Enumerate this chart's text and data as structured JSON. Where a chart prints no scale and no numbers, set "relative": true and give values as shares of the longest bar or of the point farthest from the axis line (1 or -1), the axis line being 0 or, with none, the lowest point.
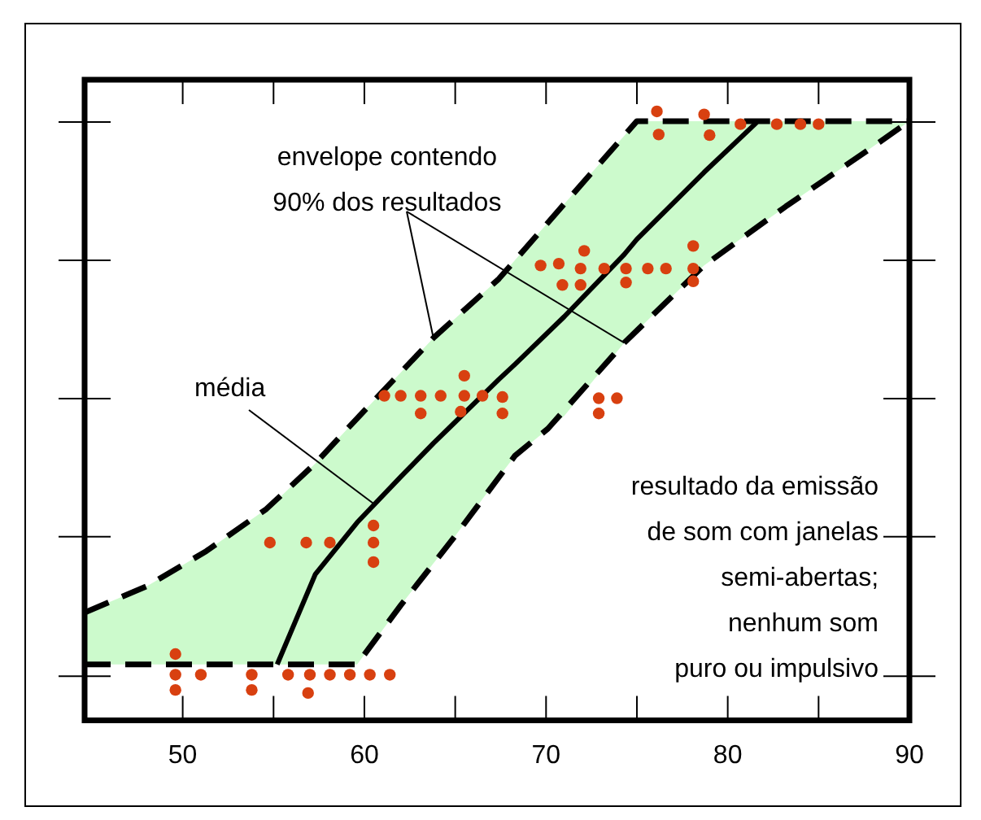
{
  "chart_data": {
    "type": "scatter",
    "relative": true,
    "xlim": [
      44.6,
      90
    ],
    "xticks": [
      50,
      {
        "value": 55,
        "label": null
      },
      60,
      {
        "value": 65,
        "label": null
      },
      70,
      {
        "value": 75,
        "label": null
      },
      80,
      {
        "value": 85,
        "label": null
      },
      90
    ],
    "grid": false,
    "legend": false,
    "tick_labels": "x",
    "annotations": [
      {
        "text": "envelope contendo\n90% dos resultados",
        "x": 63.8,
        "y": 0.628
      },
      {
        "text": "média",
        "x": 60.5,
        "y": 0.356
      },
      "resultado da emissão\nde som com janelas\nsemi-abertas;\nnenhum som\npuro ou impulsivo"
    ],
    "series": [
      {
        "type": "scatter",
        "color": "#d84010",
        "marker": "circle",
        "x": [
          76.1,
          76.2,
          78.7,
          79.0,
          80.7,
          82.7,
          84.0,
          85.0,
          69.7,
          70.7,
          72.1,
          71.9,
          70.9,
          71.9,
          73.2,
          74.4,
          74.4,
          75.6,
          76.6,
          78.1,
          78.1,
          78.1,
          67.6,
          67.6,
          72.9,
          73.9,
          72.9,
          65.5,
          61.1,
          62.0,
          63.1,
          64.2,
          65.5,
          66.5,
          63.1,
          65.3,
          60.5,
          60.5,
          60.5,
          54.8,
          56.8,
          58.1,
          49.6,
          49.6,
          49.6,
          51.0,
          53.8,
          53.8,
          55.8,
          57.0,
          56.9,
          58.1,
          59.2,
          60.3,
          61.4
        ],
        "values": [
          1.0,
          0.962,
          0.995,
          0.961,
          0.979,
          0.979,
          0.979,
          0.979,
          0.747,
          0.75,
          0.771,
          0.742,
          0.715,
          0.715,
          0.742,
          0.742,
          0.719,
          0.742,
          0.742,
          0.779,
          0.742,
          0.721,
          0.531,
          0.504,
          0.529,
          0.529,
          0.504,
          0.566,
          0.533,
          0.533,
          0.533,
          0.533,
          0.533,
          0.533,
          0.504,
          0.507,
          0.32,
          0.292,
          0.26,
          0.292,
          0.292,
          0.292,
          0.109,
          0.075,
          0.05,
          0.075,
          0.075,
          0.05,
          0.075,
          0.075,
          0.045,
          0.075,
          0.075,
          0.075,
          0.075
        ]
      },
      {
        "type": "line",
        "color": "#000000",
        "line_style": "solid",
        "marker": "none",
        "x": [
          44.6,
          48,
          51.3,
          54.6,
          55.2,
          57.3,
          59.6,
          62,
          63.8,
          65,
          67.4,
          68.3,
          71,
          74.3,
          75,
          78.7,
          81.6,
          83.2,
          87.7,
          90
        ],
        "values": [
          null,
          null,
          null,
          null,
          0.092,
          0.24,
          0.325,
          0.4,
          0.455,
          0.49,
          0.56,
          0.585,
          0.663,
          0.765,
          0.79,
          0.9,
          0.982,
          null,
          null,
          null
        ],
        "lower": [
          0.092,
          0.092,
          0.092,
          0.092,
          0.092,
          0.092,
          0.092,
          0.189,
          0.258,
          0.303,
          0.4,
          0.435,
          0.5,
          0.62,
          0.64,
          0.747,
          0.81,
          0.844,
          0.936,
          0.984
        ],
        "upper": [
          0.177,
          0.22,
          0.278,
          0.347,
          0.362,
          0.422,
          0.496,
          0.571,
          0.628,
          0.66,
          0.725,
          0.756,
          0.848,
          0.96,
          0.984,
          0.984,
          0.984,
          0.984,
          0.984,
          0.984
        ]
      },
      {
        "type": "line",
        "color": "#000000",
        "line_style": "dashed",
        "marker": "none",
        "x": [
          44.6,
          48,
          51.3,
          54.6,
          57.3,
          59.6,
          63.8,
          67.4,
          71,
          75,
          90
        ],
        "values": [
          0.177,
          0.22,
          0.278,
          0.347,
          0.422,
          0.496,
          0.628,
          0.725,
          0.848,
          0.984,
          0.984
        ]
      },
      {
        "type": "line",
        "color": "#000000",
        "line_style": "dashed",
        "marker": "none",
        "x": [
          44.6,
          59.6,
          62,
          65,
          68.3,
          70.1,
          74.3,
          78.7,
          83.2,
          87.7,
          90
        ],
        "values": [
          0.092,
          0.092,
          0.189,
          0.303,
          0.435,
          0.479,
          0.62,
          0.747,
          0.844,
          0.936,
          0.984
        ]
      }
    ]
  }
}
